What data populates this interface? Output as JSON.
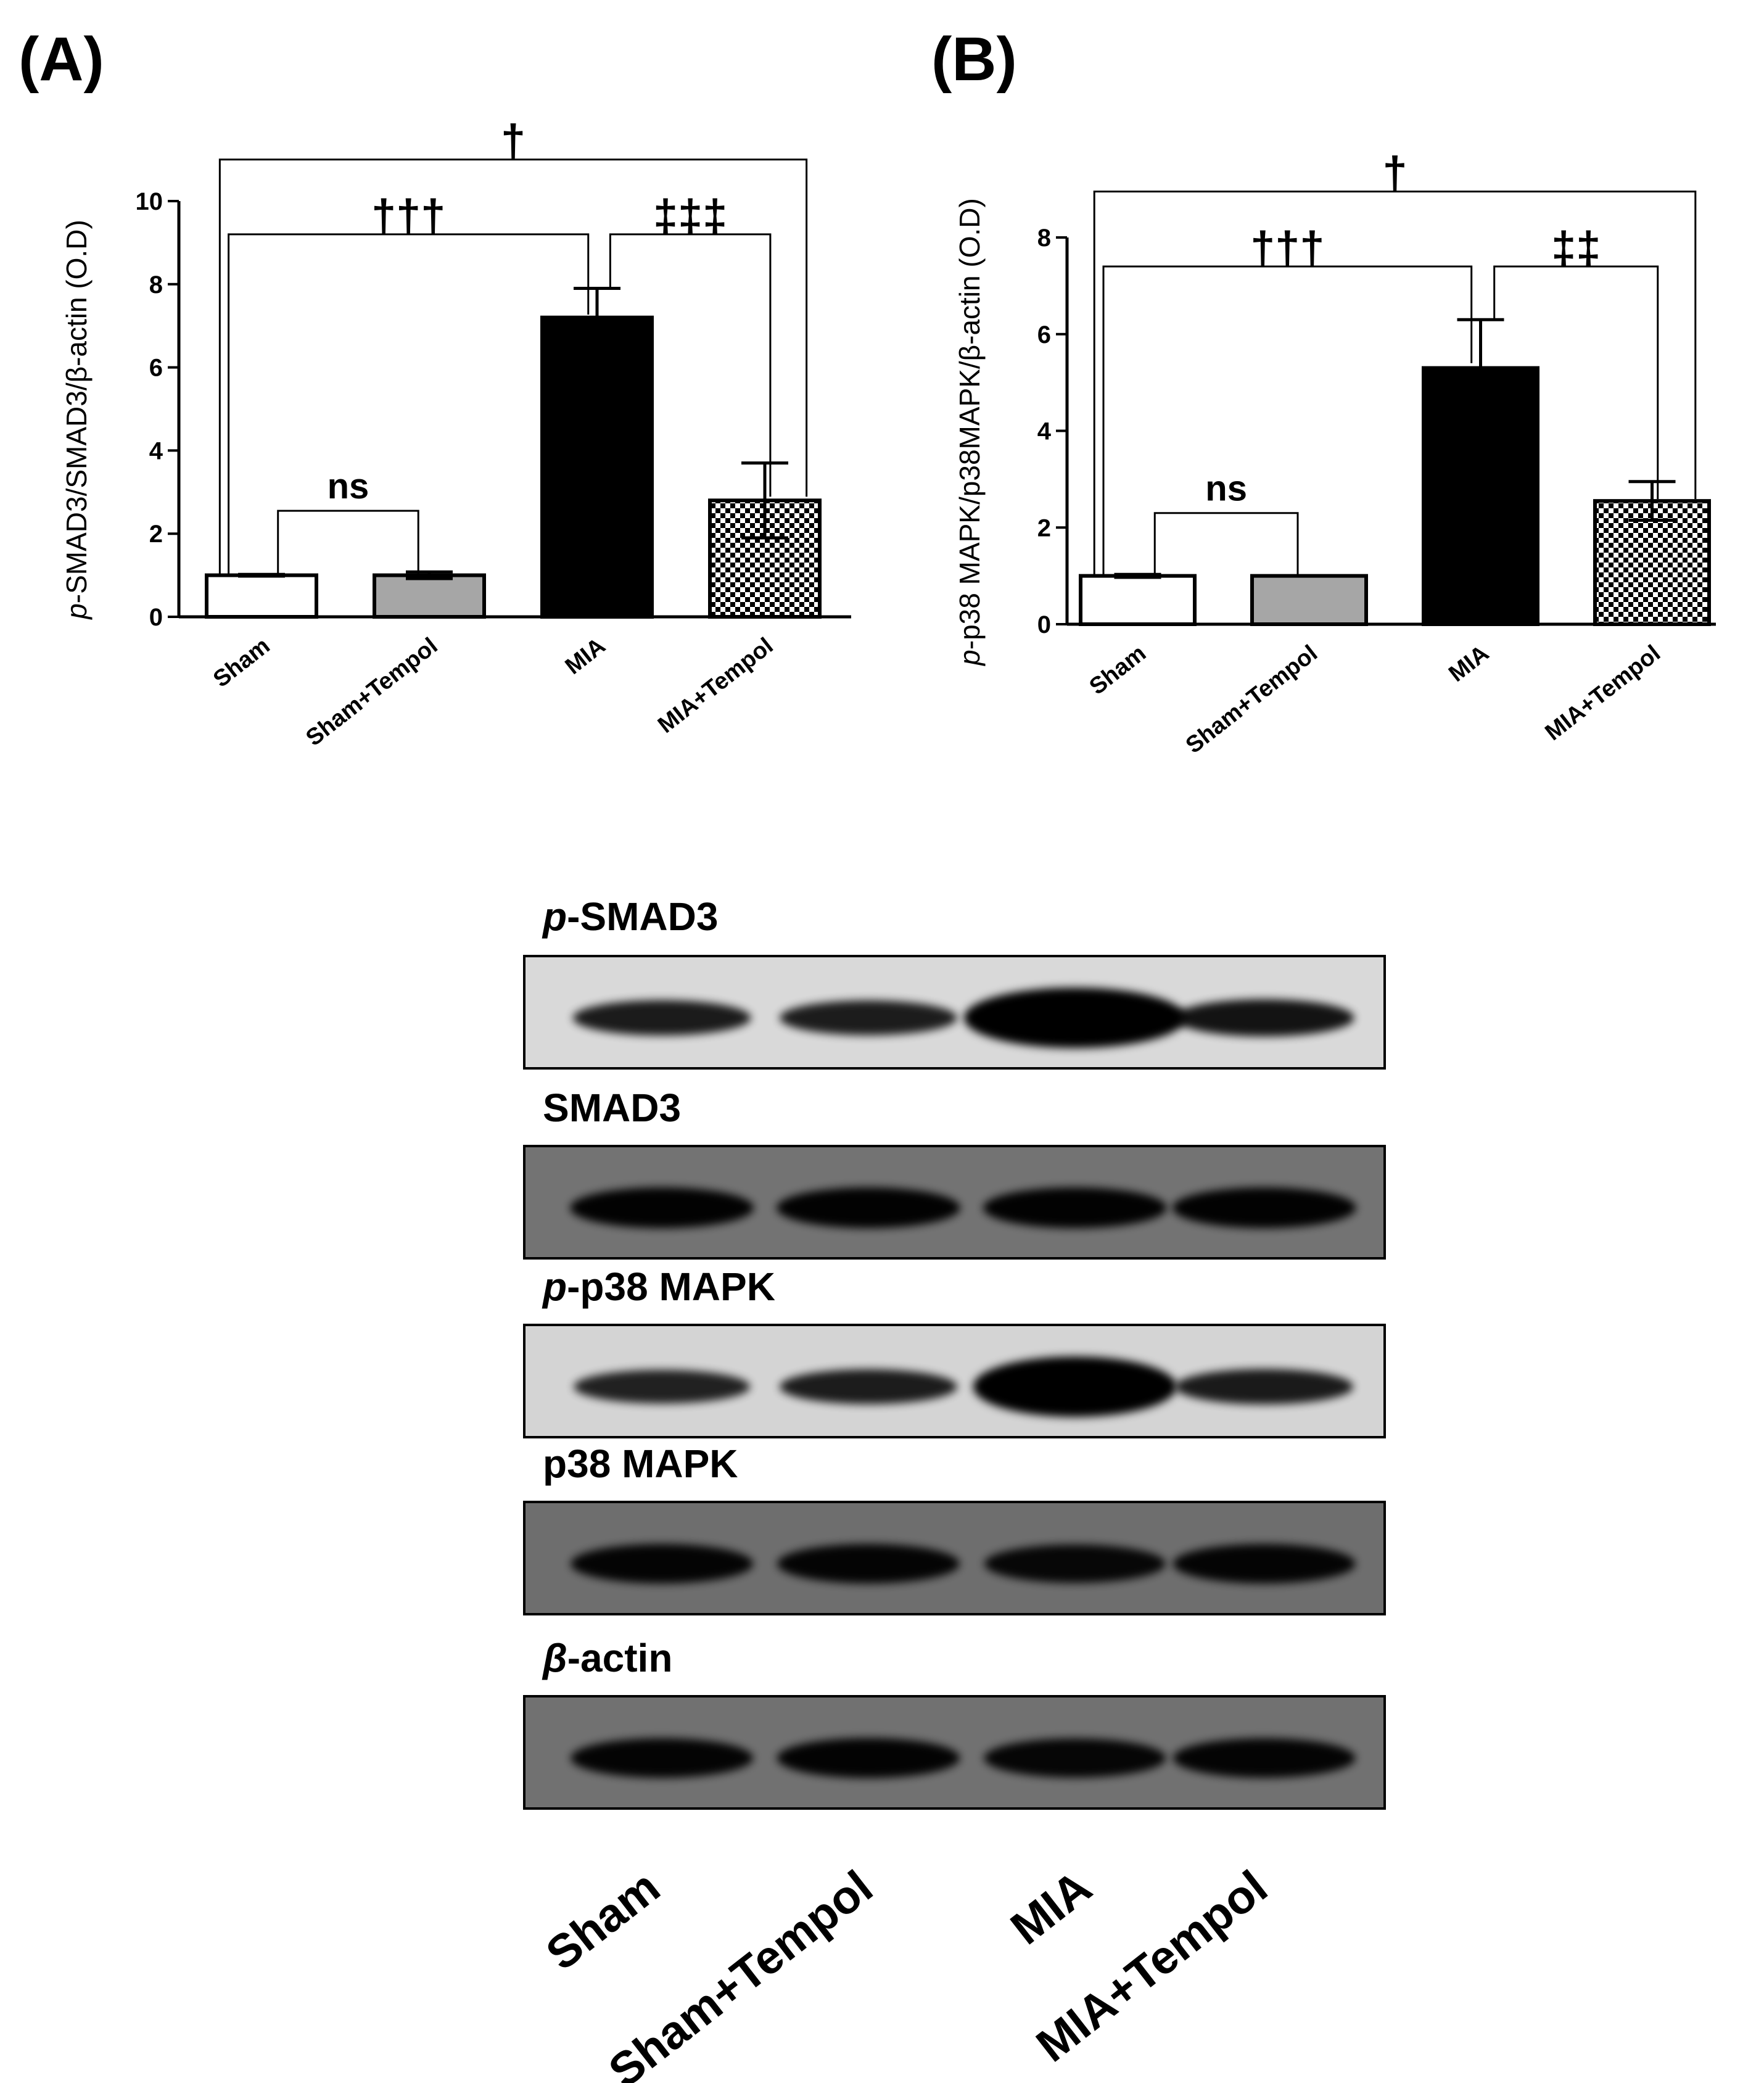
{
  "colors": {
    "ink": "#000000",
    "bar_sham": "#ffffff",
    "bar_sham_tempol": "#a6a6a6",
    "bar_mia": "#000000",
    "bar_mia_tempol": "checkerboard"
  },
  "chart_data": [
    {
      "type": "bar",
      "panel_label": "(A)",
      "ylabel_prefix": "p",
      "ylabel_rest": "-SMAD3/SMAD3/β-actin (O.D)",
      "xlabel": "",
      "categories": [
        "Sham",
        "Sham+Tempol",
        "MIA",
        "MIA+Tempol"
      ],
      "values": [
        1.0,
        1.0,
        7.2,
        2.8
      ],
      "errors": [
        0.02,
        0.08,
        0.7,
        0.9
      ],
      "yticks": [
        0,
        2,
        4,
        6,
        8,
        10
      ],
      "ylim": [
        0,
        10
      ],
      "grid": false,
      "legend": "none",
      "annotations": [
        {
          "from": 0,
          "to": 1,
          "text": "ns",
          "level": 2.55
        },
        {
          "from": 0,
          "to": 2,
          "text": "†††",
          "level": 9.2
        },
        {
          "from": 2,
          "to": 3,
          "text": "‡‡‡",
          "level": 9.2
        },
        {
          "from": 0,
          "to": 3,
          "text": "†",
          "level": 11.0
        }
      ]
    },
    {
      "type": "bar",
      "panel_label": "(B)",
      "ylabel_prefix": "p",
      "ylabel_rest": "-p38 MAPK/p38MAPK/β-actin (O.D)",
      "xlabel": "",
      "categories": [
        "Sham",
        "Sham+Tempol",
        "MIA",
        "MIA+Tempol"
      ],
      "values": [
        1.0,
        1.0,
        5.3,
        2.55
      ],
      "errors": [
        0.03,
        0.0,
        1.0,
        0.4
      ],
      "yticks": [
        0,
        2,
        4,
        6,
        8
      ],
      "ylim": [
        0,
        8
      ],
      "grid": false,
      "legend": "none",
      "annotations": [
        {
          "from": 0,
          "to": 1,
          "text": "ns",
          "level": 2.3
        },
        {
          "from": 0,
          "to": 2,
          "text": "†††",
          "level": 7.4
        },
        {
          "from": 2,
          "to": 3,
          "text": "‡‡",
          "level": 7.4
        },
        {
          "from": 0,
          "to": 3,
          "text": "†",
          "level": 8.95
        }
      ]
    }
  ],
  "blots": {
    "rows": [
      {
        "prefix": "p",
        "rest": "-SMAD3",
        "bg": "#d9d9d9",
        "intensity": [
          0.72,
          0.7,
          1.0,
          0.8
        ]
      },
      {
        "prefix": "",
        "rest": "SMAD3",
        "bg": "#737373",
        "intensity": [
          0.95,
          0.95,
          0.95,
          0.95
        ]
      },
      {
        "prefix": "p",
        "rest": "-p38 MAPK",
        "bg": "#d4d4d4",
        "intensity": [
          0.65,
          0.7,
          1.0,
          0.72
        ]
      },
      {
        "prefix": "",
        "rest": "p38 MAPK",
        "bg": "#6e6e6e",
        "intensity": [
          0.9,
          0.9,
          0.85,
          0.9
        ]
      },
      {
        "prefix": "β",
        "rest": "-actin",
        "bg": "#717171",
        "intensity": [
          0.9,
          0.92,
          0.88,
          0.9
        ]
      }
    ],
    "lanes": [
      "Sham",
      "Sham+Tempol",
      "MIA",
      "MIA+Tempol"
    ]
  }
}
